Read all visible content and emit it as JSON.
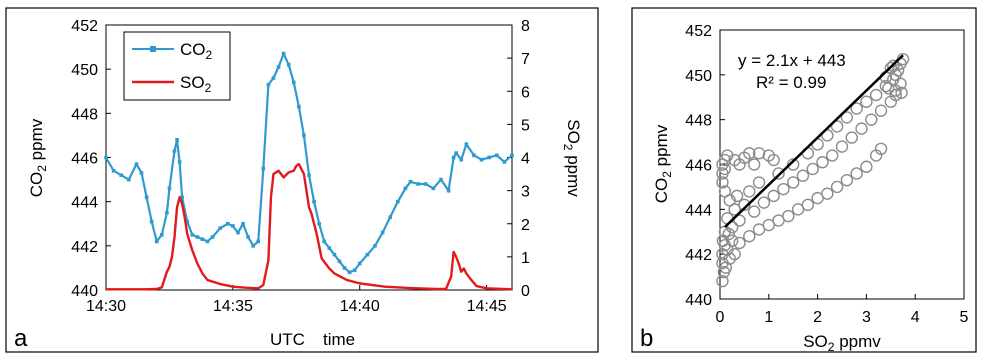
{
  "chart_data": [
    {
      "panel_label": "a",
      "type": "line",
      "xlabel_left": "UTC",
      "xlabel_right": "time",
      "ylabel_left": {
        "base": "CO",
        "sub": "2",
        "unit": " ppmv"
      },
      "ylabel_right": {
        "base": "SO",
        "sub": "2",
        "unit": " ppmv"
      },
      "x_ticks": [
        "14:30",
        "14:35",
        "14:40",
        "14:45"
      ],
      "x_tick_minutes": [
        0,
        5,
        10,
        15
      ],
      "xlim_minutes": [
        0,
        16
      ],
      "y_left_lim": [
        440,
        452
      ],
      "y_left_ticks": [
        "440",
        "442",
        "444",
        "446",
        "448",
        "450",
        "452"
      ],
      "y_right_lim": [
        0,
        8
      ],
      "y_right_ticks": [
        "0",
        "1",
        "2",
        "3",
        "4",
        "5",
        "6",
        "7",
        "8"
      ],
      "grid": false,
      "legend_position": "top-left",
      "series": [
        {
          "name": {
            "base": "CO",
            "sub": "2"
          },
          "axis": "left",
          "color": "#2e9ad0",
          "marker": "square",
          "x": [
            0,
            0.3,
            0.6,
            0.9,
            1.2,
            1.4,
            1.6,
            1.8,
            2.0,
            2.2,
            2.4,
            2.5,
            2.7,
            2.8,
            2.9,
            3.0,
            3.2,
            3.4,
            3.6,
            3.8,
            4.0,
            4.2,
            4.5,
            4.8,
            5.0,
            5.2,
            5.4,
            5.6,
            5.8,
            6.0,
            6.2,
            6.4,
            6.6,
            6.8,
            7.0,
            7.2,
            7.4,
            7.6,
            7.8,
            8.0,
            8.2,
            8.4,
            8.6,
            8.8,
            9.0,
            9.2,
            9.4,
            9.6,
            9.8,
            10.0,
            10.3,
            10.6,
            10.9,
            11.2,
            11.5,
            11.8,
            12.0,
            12.3,
            12.6,
            12.9,
            13.2,
            13.5,
            13.7,
            13.8,
            14.0,
            14.2,
            14.5,
            14.8,
            15.1,
            15.4,
            15.7,
            16.0
          ],
          "y": [
            446.0,
            445.4,
            445.2,
            445.0,
            445.7,
            445.3,
            444.2,
            443.1,
            442.2,
            442.5,
            443.5,
            444.6,
            446.3,
            446.8,
            445.8,
            444.2,
            443.1,
            442.5,
            442.4,
            442.3,
            442.2,
            442.4,
            442.8,
            443.0,
            442.9,
            442.6,
            443.0,
            442.4,
            442.0,
            442.2,
            445.5,
            449.3,
            449.6,
            450.1,
            450.7,
            450.2,
            449.4,
            448.3,
            447.0,
            445.2,
            444.0,
            443.0,
            442.2,
            441.9,
            441.6,
            441.3,
            441.0,
            440.8,
            440.9,
            441.2,
            441.6,
            442.0,
            442.6,
            443.3,
            444.0,
            444.6,
            444.9,
            444.8,
            444.8,
            444.6,
            445.0,
            444.5,
            446.0,
            446.2,
            445.9,
            446.6,
            446.1,
            445.9,
            446.0,
            446.1,
            445.8,
            446.1
          ]
        },
        {
          "name": {
            "base": "SO",
            "sub": "2"
          },
          "axis": "right",
          "color": "#e31a1c",
          "marker": "none",
          "x": [
            0,
            1.5,
            2.0,
            2.2,
            2.4,
            2.5,
            2.6,
            2.7,
            2.8,
            2.9,
            3.0,
            3.1,
            3.2,
            3.4,
            3.6,
            3.8,
            4.0,
            4.5,
            5.0,
            5.5,
            6.0,
            6.2,
            6.4,
            6.5,
            6.6,
            6.8,
            7.0,
            7.2,
            7.4,
            7.5,
            7.6,
            7.7,
            7.8,
            7.9,
            8.0,
            8.1,
            8.3,
            8.5,
            8.8,
            9.0,
            9.5,
            10.0,
            11.0,
            12.0,
            13.0,
            13.4,
            13.6,
            13.7,
            13.8,
            13.9,
            14.0,
            14.1,
            14.2,
            14.4,
            14.6,
            15.0,
            16.0
          ],
          "y": [
            0.02,
            0.02,
            0.03,
            0.08,
            0.55,
            0.7,
            1.0,
            1.6,
            2.5,
            2.8,
            2.6,
            2.2,
            1.7,
            1.2,
            0.8,
            0.5,
            0.3,
            0.18,
            0.1,
            0.07,
            0.05,
            0.15,
            0.9,
            2.8,
            3.5,
            3.6,
            3.4,
            3.55,
            3.6,
            3.75,
            3.8,
            3.65,
            3.5,
            3.0,
            2.5,
            2.3,
            1.7,
            0.95,
            0.65,
            0.5,
            0.3,
            0.2,
            0.1,
            0.06,
            0.03,
            0.03,
            0.4,
            1.15,
            1.0,
            0.8,
            0.55,
            0.65,
            0.5,
            0.3,
            0.12,
            0.05,
            0.02
          ]
        }
      ]
    },
    {
      "panel_label": "b",
      "type": "scatter",
      "xlabel": {
        "base": "SO",
        "sub": "2",
        "unit": " ppmv"
      },
      "ylabel": {
        "base": "CO",
        "sub": "2",
        "unit": " ppmv"
      },
      "xlim": [
        0,
        5
      ],
      "x_ticks": [
        "0",
        "1",
        "2",
        "3",
        "4",
        "5"
      ],
      "ylim": [
        440,
        452
      ],
      "y_ticks": [
        "440",
        "442",
        "444",
        "446",
        "448",
        "450",
        "452"
      ],
      "grid": false,
      "marker_color": "#8c8c8c",
      "fit": {
        "equation": "y = 2.1x + 443",
        "r2_label": "R² = 0.99",
        "slope": 2.1,
        "intercept": 443,
        "x_range": [
          0.1,
          3.75
        ],
        "color": "#000000"
      },
      "points": [
        [
          0.05,
          446.0
        ],
        [
          0.05,
          445.6
        ],
        [
          0.1,
          445.8
        ],
        [
          0.1,
          446.2
        ],
        [
          0.05,
          445.2
        ],
        [
          0.15,
          446.4
        ],
        [
          0.3,
          446.2
        ],
        [
          0.4,
          446.0
        ],
        [
          0.5,
          446.3
        ],
        [
          0.6,
          446.5
        ],
        [
          0.8,
          446.5
        ],
        [
          1.0,
          446.4
        ],
        [
          1.1,
          446.2
        ],
        [
          0.7,
          446.0
        ],
        [
          0.1,
          444.8
        ],
        [
          0.2,
          444.4
        ],
        [
          0.3,
          444.0
        ],
        [
          0.15,
          443.6
        ],
        [
          0.25,
          443.2
        ],
        [
          0.4,
          443.5
        ],
        [
          0.5,
          444.2
        ],
        [
          0.6,
          444.8
        ],
        [
          0.8,
          445.2
        ],
        [
          0.35,
          444.6
        ],
        [
          0.05,
          442.0
        ],
        [
          0.05,
          441.6
        ],
        [
          0.08,
          441.2
        ],
        [
          0.05,
          440.8
        ],
        [
          0.1,
          442.4
        ],
        [
          0.15,
          442.2
        ],
        [
          0.2,
          441.8
        ],
        [
          0.1,
          443.0
        ],
        [
          0.12,
          441.4
        ],
        [
          0.25,
          442.6
        ],
        [
          0.3,
          442.0
        ],
        [
          0.18,
          442.9
        ],
        [
          0.06,
          442.6
        ],
        [
          0.4,
          442.5
        ],
        [
          0.6,
          442.8
        ],
        [
          0.8,
          443.1
        ],
        [
          1.0,
          443.3
        ],
        [
          1.2,
          443.5
        ],
        [
          1.4,
          443.7
        ],
        [
          1.6,
          444.0
        ],
        [
          1.8,
          444.2
        ],
        [
          2.0,
          444.5
        ],
        [
          2.2,
          444.7
        ],
        [
          2.4,
          445.0
        ],
        [
          2.6,
          445.3
        ],
        [
          2.8,
          445.6
        ],
        [
          3.0,
          445.9
        ],
        [
          3.2,
          446.4
        ],
        [
          3.3,
          446.7
        ],
        [
          0.7,
          443.9
        ],
        [
          0.9,
          444.3
        ],
        [
          1.1,
          444.6
        ],
        [
          1.3,
          444.9
        ],
        [
          1.5,
          445.2
        ],
        [
          1.7,
          445.5
        ],
        [
          1.9,
          445.8
        ],
        [
          2.1,
          446.1
        ],
        [
          2.3,
          446.4
        ],
        [
          2.5,
          446.8
        ],
        [
          2.7,
          447.2
        ],
        [
          2.9,
          447.6
        ],
        [
          3.1,
          448.0
        ],
        [
          3.3,
          448.4
        ],
        [
          3.5,
          448.8
        ],
        [
          3.6,
          449.1
        ],
        [
          1.2,
          445.6
        ],
        [
          1.5,
          446.0
        ],
        [
          1.8,
          446.5
        ],
        [
          2.0,
          446.9
        ],
        [
          2.2,
          447.3
        ],
        [
          2.4,
          447.7
        ],
        [
          2.6,
          448.1
        ],
        [
          2.8,
          448.5
        ],
        [
          3.0,
          448.8
        ],
        [
          3.2,
          449.1
        ],
        [
          3.4,
          449.5
        ],
        [
          3.55,
          449.8
        ],
        [
          3.65,
          450.2
        ],
        [
          3.7,
          450.5
        ],
        [
          3.75,
          450.7
        ],
        [
          3.4,
          449.9
        ],
        [
          3.5,
          450.3
        ],
        [
          3.6,
          450.0
        ],
        [
          3.7,
          449.6
        ],
        [
          3.6,
          449.3
        ],
        [
          3.55,
          450.4
        ],
        [
          3.72,
          449.2
        ],
        [
          3.45,
          449.4
        ]
      ]
    }
  ]
}
